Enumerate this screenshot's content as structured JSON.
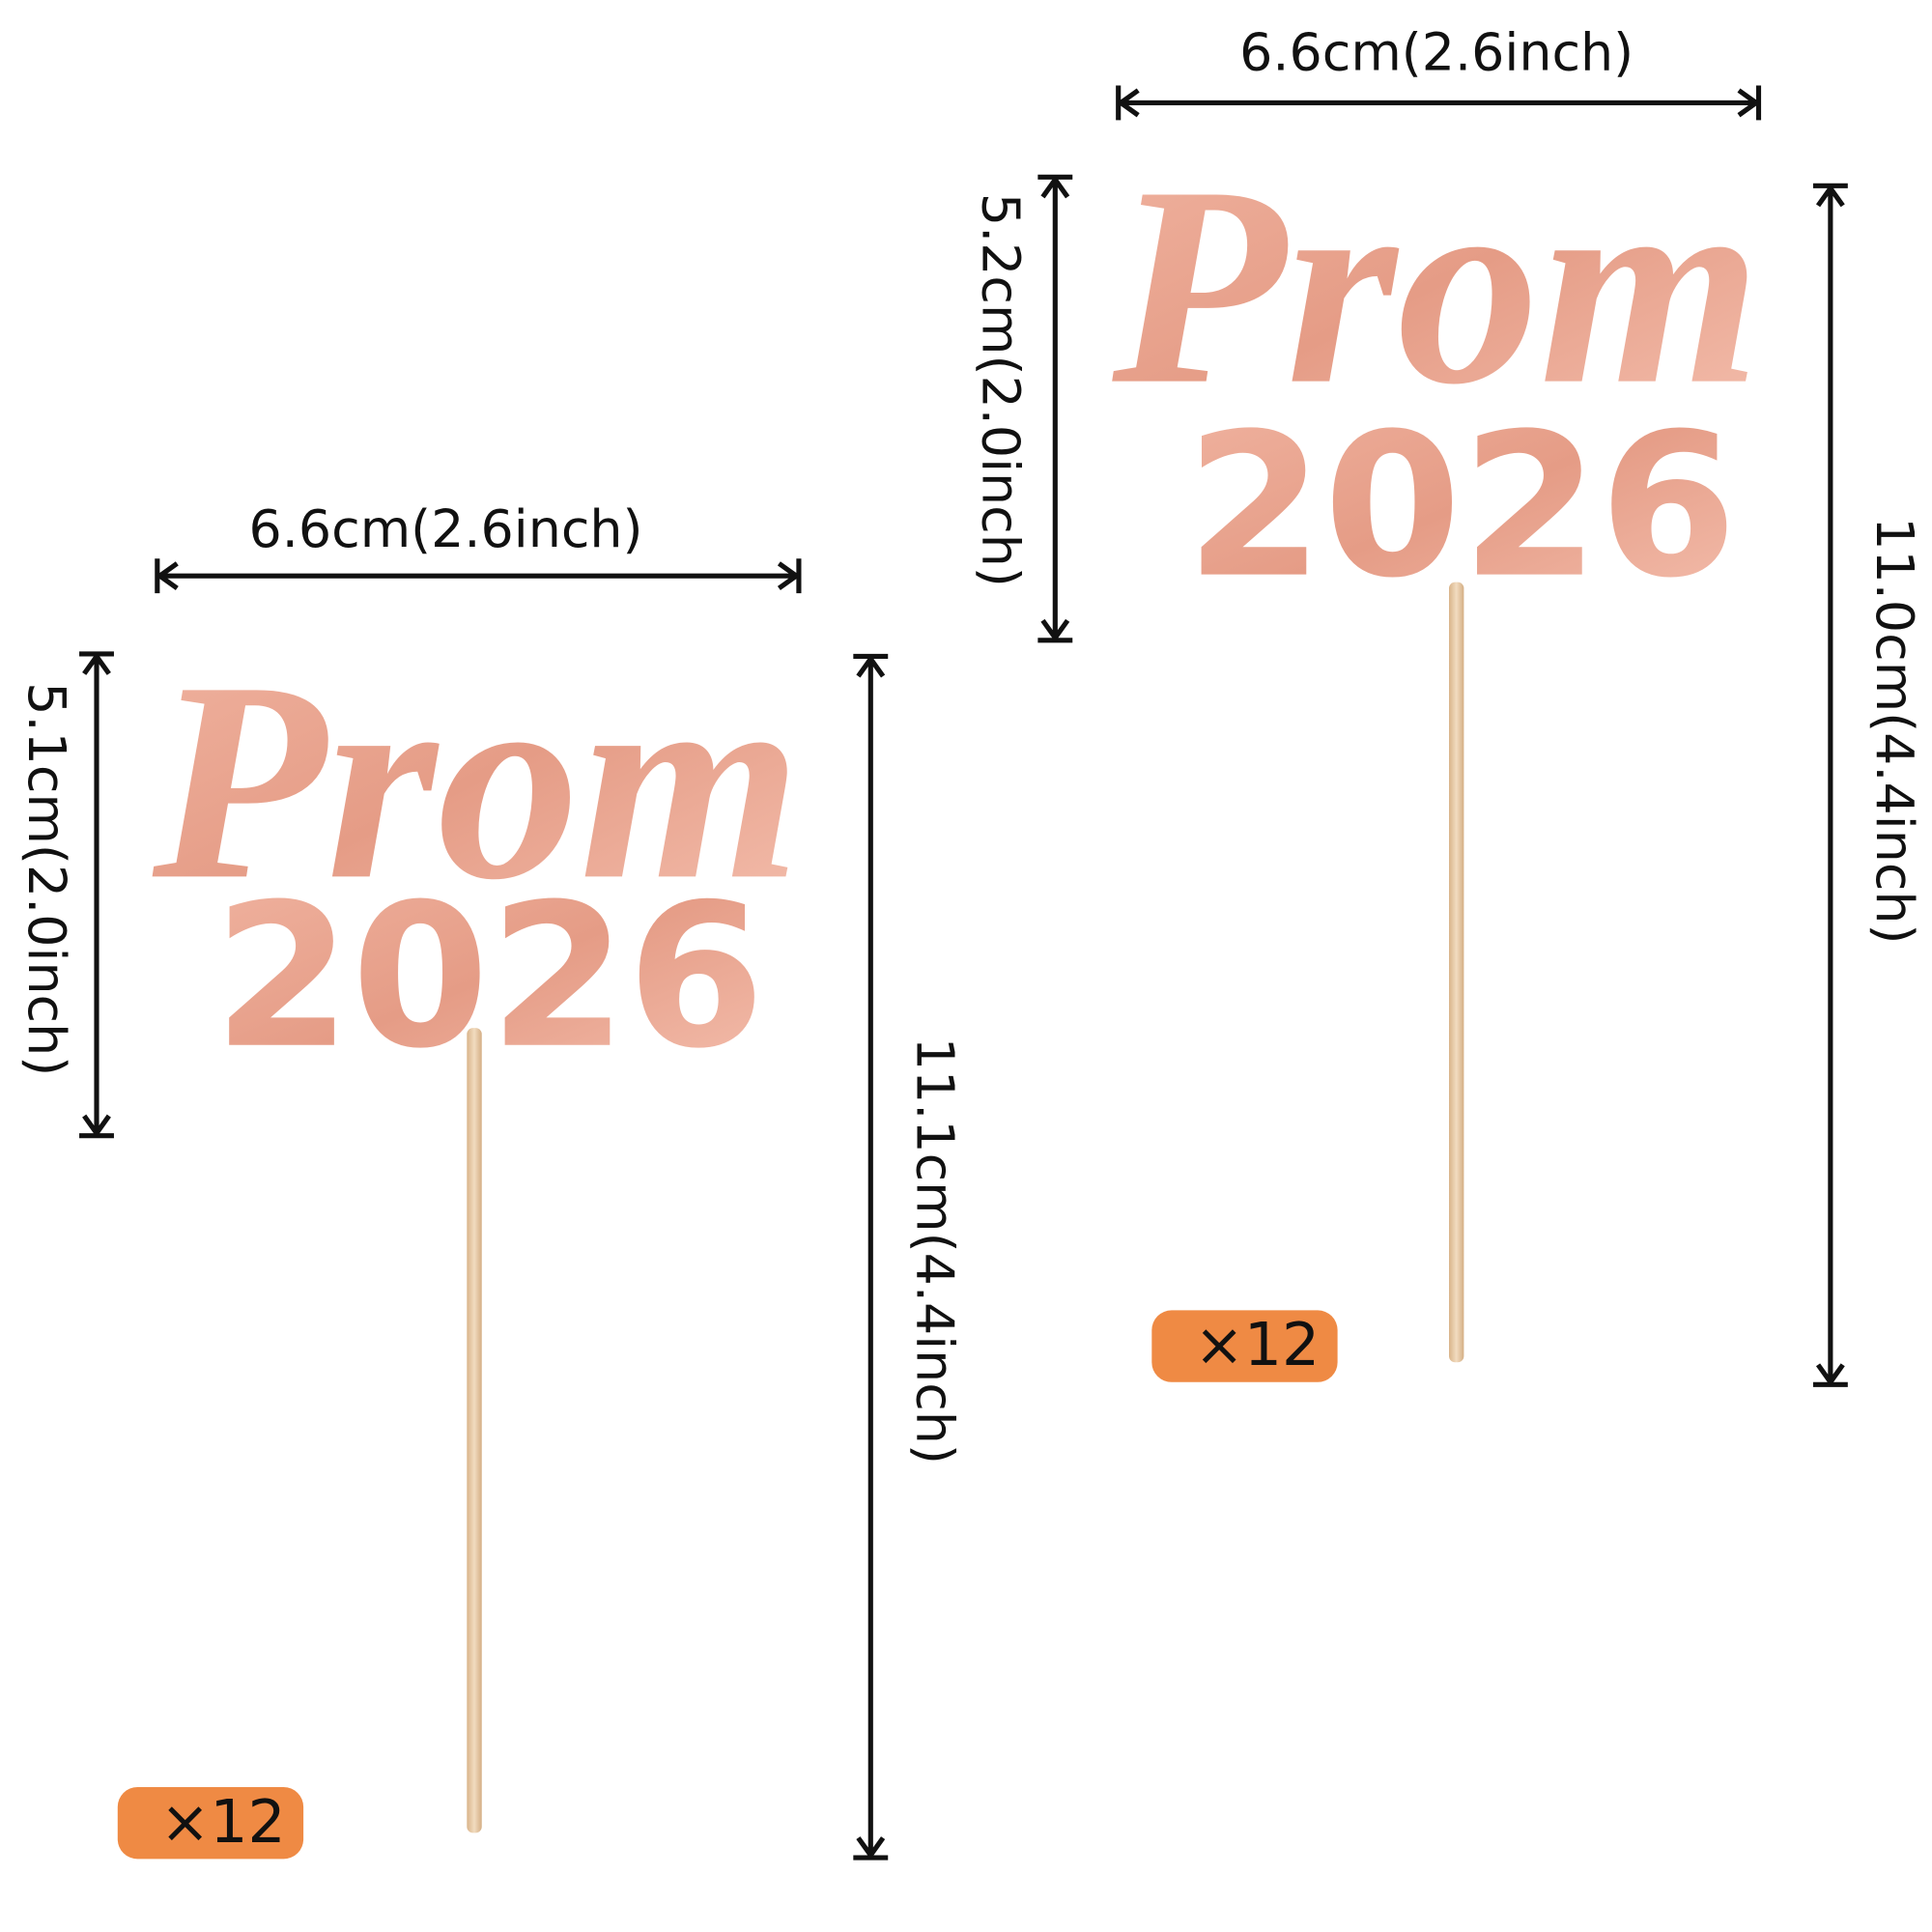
{
  "toppers": [
    {
      "word": "Prom",
      "year": "2026",
      "width": "6.6cm(2.6inch)",
      "height": "5.1cm(2.0inch)",
      "total_height": "11.1cm(4.4inch)",
      "quantity": "×12"
    },
    {
      "word": "Prom",
      "year": "2026",
      "width": "6.6cm(2.6inch)",
      "height": "5.2cm(2.0inch)",
      "total_height": "11.0cm(4.4inch)",
      "quantity": "×12"
    }
  ]
}
